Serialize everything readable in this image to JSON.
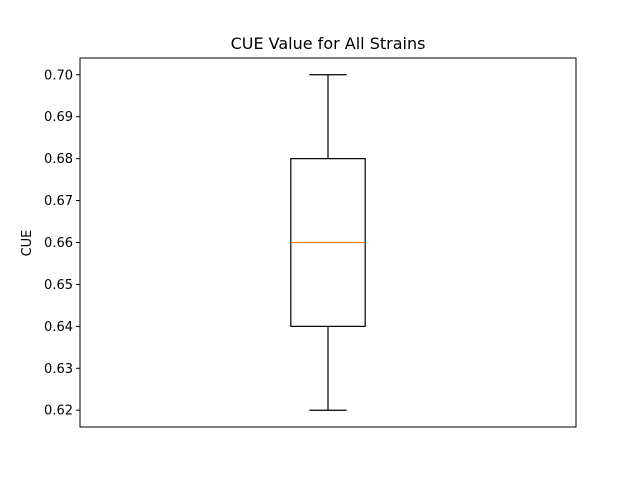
{
  "chart_data": {
    "type": "box",
    "title": "CUE Value for All Strains",
    "xlabel": "",
    "ylabel": "CUE",
    "ylim": [
      0.616,
      0.704
    ],
    "yticks": [
      "0.62",
      "0.63",
      "0.64",
      "0.65",
      "0.66",
      "0.67",
      "0.68",
      "0.69",
      "0.70"
    ],
    "series": [
      {
        "whisker_low": 0.62,
        "q1": 0.64,
        "median": 0.66,
        "q3": 0.68,
        "whisker_high": 0.7
      }
    ],
    "grid": false,
    "colors": {
      "box": "#000000",
      "median": "#ff7f0e",
      "whisker": "#000000"
    }
  }
}
